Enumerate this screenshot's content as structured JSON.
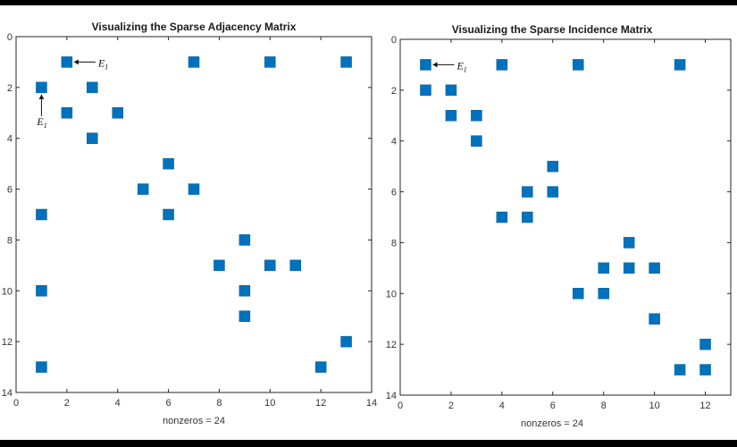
{
  "chart_data": [
    {
      "type": "scatter",
      "title": "Visualizing the Sparse Adjacency Matrix",
      "xlabel": "nonzeros = 24",
      "ylabel": "",
      "xlim": [
        0,
        14
      ],
      "ylim": [
        0,
        14
      ],
      "y_reversed": true,
      "xticks": [
        0,
        2,
        4,
        6,
        8,
        10,
        12,
        14
      ],
      "yticks": [
        0,
        2,
        4,
        6,
        8,
        10,
        12,
        14
      ],
      "marker_color": "#0072BD",
      "points": [
        {
          "x": 2,
          "y": 1
        },
        {
          "x": 7,
          "y": 1
        },
        {
          "x": 10,
          "y": 1
        },
        {
          "x": 13,
          "y": 1
        },
        {
          "x": 1,
          "y": 2
        },
        {
          "x": 3,
          "y": 2
        },
        {
          "x": 2,
          "y": 3
        },
        {
          "x": 4,
          "y": 3
        },
        {
          "x": 3,
          "y": 4
        },
        {
          "x": 6,
          "y": 5
        },
        {
          "x": 5,
          "y": 6
        },
        {
          "x": 7,
          "y": 6
        },
        {
          "x": 1,
          "y": 7
        },
        {
          "x": 6,
          "y": 7
        },
        {
          "x": 9,
          "y": 8
        },
        {
          "x": 8,
          "y": 9
        },
        {
          "x": 10,
          "y": 9
        },
        {
          "x": 11,
          "y": 9
        },
        {
          "x": 1,
          "y": 10
        },
        {
          "x": 9,
          "y": 10
        },
        {
          "x": 9,
          "y": 11
        },
        {
          "x": 13,
          "y": 12
        },
        {
          "x": 1,
          "y": 13
        },
        {
          "x": 12,
          "y": 13
        }
      ],
      "annotations": [
        {
          "text": "E",
          "subscript": "1",
          "point": {
            "x": 2,
            "y": 1
          },
          "arrow": "left"
        },
        {
          "text": "E",
          "subscript": "1",
          "point": {
            "x": 1,
            "y": 2
          },
          "arrow": "up"
        }
      ]
    },
    {
      "type": "scatter",
      "title": "Visualizing the Sparse Incidence Matrix",
      "xlabel": "nonzeros = 24",
      "ylabel": "",
      "xlim": [
        0,
        13
      ],
      "ylim": [
        0,
        14
      ],
      "y_reversed": true,
      "xticks": [
        0,
        2,
        4,
        6,
        8,
        10,
        12
      ],
      "yticks": [
        0,
        2,
        4,
        6,
        8,
        10,
        12,
        14
      ],
      "marker_color": "#0072BD",
      "points": [
        {
          "x": 1,
          "y": 1
        },
        {
          "x": 4,
          "y": 1
        },
        {
          "x": 7,
          "y": 1
        },
        {
          "x": 11,
          "y": 1
        },
        {
          "x": 1,
          "y": 2
        },
        {
          "x": 2,
          "y": 2
        },
        {
          "x": 2,
          "y": 3
        },
        {
          "x": 3,
          "y": 3
        },
        {
          "x": 3,
          "y": 4
        },
        {
          "x": 6,
          "y": 5
        },
        {
          "x": 5,
          "y": 6
        },
        {
          "x": 6,
          "y": 6
        },
        {
          "x": 4,
          "y": 7
        },
        {
          "x": 5,
          "y": 7
        },
        {
          "x": 9,
          "y": 8
        },
        {
          "x": 8,
          "y": 9
        },
        {
          "x": 9,
          "y": 9
        },
        {
          "x": 10,
          "y": 9
        },
        {
          "x": 7,
          "y": 10
        },
        {
          "x": 8,
          "y": 10
        },
        {
          "x": 10,
          "y": 11
        },
        {
          "x": 12,
          "y": 12
        },
        {
          "x": 11,
          "y": 13
        },
        {
          "x": 12,
          "y": 13
        }
      ],
      "annotations": [
        {
          "text": "E",
          "subscript": "1",
          "point": {
            "x": 1,
            "y": 1
          },
          "arrow": "left"
        }
      ]
    }
  ]
}
